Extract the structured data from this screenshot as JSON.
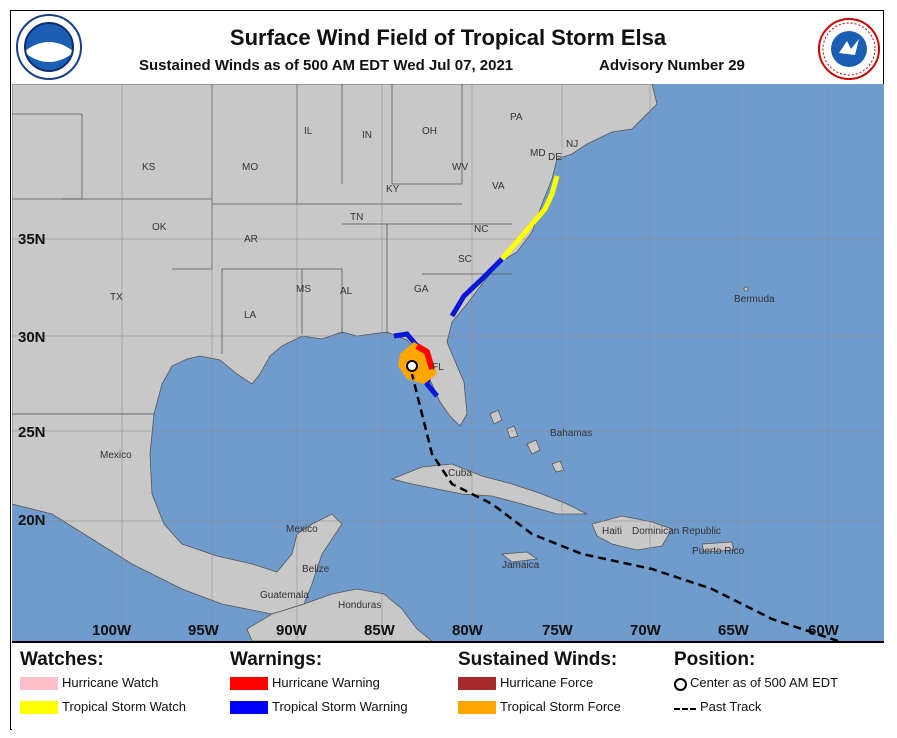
{
  "header": {
    "title": "Surface Wind Field of Tropical Storm Elsa",
    "subtitle": "Sustained Winds as of 500 AM EDT Wed Jul 07, 2021",
    "advisory": "Advisory Number 29",
    "left_logo_text": "NOAA",
    "right_logo_text": "NATIONAL WEATHER SERVICE"
  },
  "map": {
    "latitude_labels": [
      "35N",
      "30N",
      "25N",
      "20N"
    ],
    "longitude_labels": [
      "100W",
      "95W",
      "90W",
      "85W",
      "80W",
      "75W",
      "70W",
      "65W",
      "60W"
    ],
    "state_labels": [
      "IL",
      "IN",
      "OH",
      "PA",
      "KS",
      "MO",
      "KY",
      "WV",
      "VA",
      "MD",
      "DE",
      "NJ",
      "OK",
      "AR",
      "TN",
      "NC",
      "SC",
      "TX",
      "MS",
      "AL",
      "GA",
      "LA",
      "FL"
    ],
    "place_labels": [
      "Bermuda",
      "Mexico",
      "Bahamas",
      "Cuba",
      "Haiti",
      "Dominican Republic",
      "Puerto Rico",
      "Jamaica",
      "Mexico",
      "Belize",
      "Guatemala",
      "Honduras"
    ],
    "colors": {
      "ocean": "#6f9ccd",
      "land": "#c8c8c8",
      "tropical_storm_warning": "#0a17d6",
      "tropical_storm_watch": "#ffff00",
      "hurricane_warning": "#ff0000",
      "tropical_storm_force": "#ffa500"
    }
  },
  "legend": {
    "watches": {
      "heading": "Watches:",
      "items": [
        {
          "label": "Hurricane Watch",
          "color": "#ffc0cb"
        },
        {
          "label": "Tropical Storm Watch",
          "color": "#ffff00"
        }
      ]
    },
    "warnings": {
      "heading": "Warnings:",
      "items": [
        {
          "label": "Hurricane Warning",
          "color": "#ff0000"
        },
        {
          "label": "Tropical Storm Warning",
          "color": "#0000ff"
        }
      ]
    },
    "winds": {
      "heading": "Sustained Winds:",
      "items": [
        {
          "label": "Hurricane Force",
          "color": "#a52a2a"
        },
        {
          "label": "Tropical Storm Force",
          "color": "#ffa500"
        }
      ]
    },
    "position": {
      "heading": "Position:",
      "items": [
        {
          "label": "Center as of 500 AM EDT",
          "icon": "center-circle-icon"
        },
        {
          "label": "Past Track",
          "icon": "dashed-line-icon"
        }
      ]
    }
  }
}
